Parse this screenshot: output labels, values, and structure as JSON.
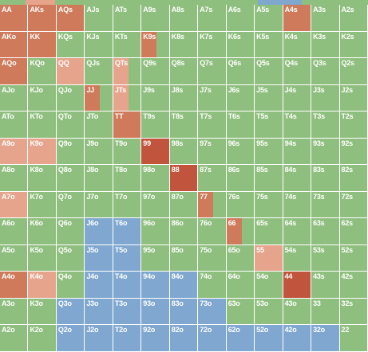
{
  "colors": {
    "call": "#8fbf7e",
    "raise": "#cf7a5a",
    "fold": "#7fa7cf",
    "allin": "#c0543c",
    "pink": "#e6a48c"
  },
  "hands": [
    [
      "AA",
      "AKs",
      "AQs",
      "AJs",
      "ATs",
      "A9s",
      "A8s",
      "A7s",
      "A6s",
      "A5s",
      "A4s",
      "A3s",
      "A2s"
    ],
    [
      "AKo",
      "KK",
      "KQs",
      "KJs",
      "KTs",
      "K9s",
      "K8s",
      "K7s",
      "K6s",
      "K5s",
      "K4s",
      "K3s",
      "K2s"
    ],
    [
      "AQo",
      "KQo",
      "QQ",
      "QJs",
      "QTs",
      "Q9s",
      "Q8s",
      "Q7s",
      "Q6s",
      "Q5s",
      "Q4s",
      "Q3s",
      "Q2s"
    ],
    [
      "AJo",
      "KJo",
      "QJo",
      "JJ",
      "JTs",
      "J9s",
      "J8s",
      "J7s",
      "J6s",
      "J5s",
      "J4s",
      "J3s",
      "J2s"
    ],
    [
      "ATo",
      "KTo",
      "QTo",
      "JTo",
      "TT",
      "T9s",
      "T8s",
      "T7s",
      "T6s",
      "T5s",
      "T4s",
      "T3s",
      "T2s"
    ],
    [
      "A9o",
      "K9o",
      "Q9o",
      "J9o",
      "T9o",
      "99",
      "98s",
      "97s",
      "96s",
      "95s",
      "94s",
      "93s",
      "92s"
    ],
    [
      "A8o",
      "K8o",
      "Q8o",
      "J8o",
      "T8o",
      "98o",
      "88",
      "87s",
      "86s",
      "85s",
      "84s",
      "83s",
      "82s"
    ],
    [
      "A7o",
      "K7o",
      "Q7o",
      "J7o",
      "T7o",
      "97o",
      "87o",
      "77",
      "76s",
      "75s",
      "74s",
      "73s",
      "72s"
    ],
    [
      "A6o",
      "K6o",
      "Q6o",
      "J6o",
      "T6o",
      "96o",
      "86o",
      "76o",
      "66",
      "65s",
      "64s",
      "63s",
      "62s"
    ],
    [
      "A5o",
      "K5o",
      "Q5o",
      "J5o",
      "T5o",
      "95o",
      "85o",
      "75o",
      "65o",
      "55",
      "54s",
      "53s",
      "52s"
    ],
    [
      "A4o",
      "K4o",
      "Q4o",
      "J4o",
      "T4o",
      "94o",
      "84o",
      "74o",
      "64o",
      "54o",
      "44",
      "43s",
      "42s"
    ],
    [
      "A3o",
      "K3o",
      "Q3o",
      "J3o",
      "T3o",
      "93o",
      "83o",
      "73o",
      "63o",
      "53o",
      "43o",
      "33",
      "32s"
    ],
    [
      "A2o",
      "K2o",
      "Q2o",
      "J2o",
      "T2o",
      "92o",
      "82o",
      "72o",
      "62o",
      "52o",
      "42o",
      "32o",
      "22"
    ]
  ],
  "cell_mix": [
    [
      [
        [
          "raise",
          100
        ]
      ],
      [
        [
          "raise",
          100
        ]
      ],
      [
        [
          "raise",
          100
        ]
      ],
      [
        [
          "call",
          100
        ]
      ],
      [
        [
          "call",
          100
        ]
      ],
      [
        [
          "call",
          100
        ]
      ],
      [
        [
          "call",
          100
        ]
      ],
      [
        [
          "call",
          100
        ]
      ],
      [
        [
          "call",
          100
        ]
      ],
      [
        [
          "call",
          100
        ]
      ],
      [
        [
          "raise",
          100
        ]
      ],
      [
        [
          "call",
          100
        ]
      ],
      [
        [
          "call",
          100
        ]
      ]
    ],
    [
      [
        [
          "raise",
          100
        ]
      ],
      [
        [
          "raise",
          100
        ]
      ],
      [
        [
          "call",
          100
        ]
      ],
      [
        [
          "call",
          100
        ]
      ],
      [
        [
          "call",
          100
        ]
      ],
      [
        [
          "raise",
          55
        ],
        [
          "call",
          45
        ]
      ],
      [
        [
          "call",
          100
        ]
      ],
      [
        [
          "call",
          100
        ]
      ],
      [
        [
          "call",
          100
        ]
      ],
      [
        [
          "call",
          100
        ]
      ],
      [
        [
          "call",
          100
        ]
      ],
      [
        [
          "call",
          100
        ]
      ],
      [
        [
          "call",
          100
        ]
      ]
    ],
    [
      [
        [
          "raise",
          100
        ]
      ],
      [
        [
          "call",
          100
        ]
      ],
      [
        [
          "pink",
          100
        ]
      ],
      [
        [
          "call",
          100
        ]
      ],
      [
        [
          "pink",
          55
        ],
        [
          "call",
          45
        ]
      ],
      [
        [
          "call",
          100
        ]
      ],
      [
        [
          "call",
          100
        ]
      ],
      [
        [
          "call",
          100
        ]
      ],
      [
        [
          "call",
          100
        ]
      ],
      [
        [
          "call",
          100
        ]
      ],
      [
        [
          "call",
          100
        ]
      ],
      [
        [
          "call",
          100
        ]
      ],
      [
        [
          "call",
          100
        ]
      ]
    ],
    [
      [
        [
          "call",
          100
        ]
      ],
      [
        [
          "call",
          100
        ]
      ],
      [
        [
          "call",
          100
        ]
      ],
      [
        [
          "raise",
          55
        ],
        [
          "call",
          45
        ]
      ],
      [
        [
          "pink",
          55
        ],
        [
          "call",
          45
        ]
      ],
      [
        [
          "call",
          100
        ]
      ],
      [
        [
          "call",
          100
        ]
      ],
      [
        [
          "call",
          100
        ]
      ],
      [
        [
          "call",
          100
        ]
      ],
      [
        [
          "call",
          100
        ]
      ],
      [
        [
          "call",
          100
        ]
      ],
      [
        [
          "call",
          100
        ]
      ],
      [
        [
          "call",
          100
        ]
      ]
    ],
    [
      [
        [
          "call",
          100
        ]
      ],
      [
        [
          "call",
          100
        ]
      ],
      [
        [
          "call",
          100
        ]
      ],
      [
        [
          "call",
          100
        ]
      ],
      [
        [
          "raise",
          100
        ]
      ],
      [
        [
          "call",
          100
        ]
      ],
      [
        [
          "call",
          100
        ]
      ],
      [
        [
          "call",
          100
        ]
      ],
      [
        [
          "call",
          100
        ]
      ],
      [
        [
          "call",
          100
        ]
      ],
      [
        [
          "call",
          100
        ]
      ],
      [
        [
          "call",
          100
        ]
      ],
      [
        [
          "call",
          100
        ]
      ]
    ],
    [
      [
        [
          "pink",
          100
        ]
      ],
      [
        [
          "pink",
          100
        ]
      ],
      [
        [
          "call",
          100
        ]
      ],
      [
        [
          "call",
          100
        ]
      ],
      [
        [
          "call",
          100
        ]
      ],
      [
        [
          "allin",
          100
        ]
      ],
      [
        [
          "call",
          100
        ]
      ],
      [
        [
          "call",
          100
        ]
      ],
      [
        [
          "call",
          100
        ]
      ],
      [
        [
          "call",
          100
        ]
      ],
      [
        [
          "call",
          100
        ]
      ],
      [
        [
          "call",
          100
        ]
      ],
      [
        [
          "call",
          100
        ]
      ]
    ],
    [
      [
        [
          "call",
          100
        ]
      ],
      [
        [
          "call",
          100
        ]
      ],
      [
        [
          "call",
          100
        ]
      ],
      [
        [
          "call",
          100
        ]
      ],
      [
        [
          "call",
          100
        ]
      ],
      [
        [
          "call",
          100
        ]
      ],
      [
        [
          "allin",
          100
        ]
      ],
      [
        [
          "call",
          100
        ]
      ],
      [
        [
          "call",
          100
        ]
      ],
      [
        [
          "call",
          100
        ]
      ],
      [
        [
          "call",
          100
        ]
      ],
      [
        [
          "call",
          100
        ]
      ],
      [
        [
          "call",
          100
        ]
      ]
    ],
    [
      [
        [
          "pink",
          100
        ]
      ],
      [
        [
          "call",
          100
        ]
      ],
      [
        [
          "call",
          100
        ]
      ],
      [
        [
          "call",
          100
        ]
      ],
      [
        [
          "call",
          100
        ]
      ],
      [
        [
          "call",
          100
        ]
      ],
      [
        [
          "call",
          100
        ]
      ],
      [
        [
          "raise",
          55
        ],
        [
          "call",
          45
        ]
      ],
      [
        [
          "call",
          100
        ]
      ],
      [
        [
          "call",
          100
        ]
      ],
      [
        [
          "call",
          100
        ]
      ],
      [
        [
          "call",
          100
        ]
      ],
      [
        [
          "call",
          100
        ]
      ]
    ],
    [
      [
        [
          "call",
          100
        ]
      ],
      [
        [
          "call",
          100
        ]
      ],
      [
        [
          "call",
          100
        ]
      ],
      [
        [
          "fold",
          100
        ]
      ],
      [
        [
          "fold",
          100
        ]
      ],
      [
        [
          "call",
          100
        ]
      ],
      [
        [
          "call",
          100
        ]
      ],
      [
        [
          "call",
          100
        ]
      ],
      [
        [
          "raise",
          55
        ],
        [
          "call",
          45
        ]
      ],
      [
        [
          "call",
          100
        ]
      ],
      [
        [
          "call",
          100
        ]
      ],
      [
        [
          "call",
          100
        ]
      ],
      [
        [
          "call",
          100
        ]
      ]
    ],
    [
      [
        [
          "call",
          100
        ]
      ],
      [
        [
          "call",
          100
        ]
      ],
      [
        [
          "call",
          100
        ]
      ],
      [
        [
          "fold",
          100
        ]
      ],
      [
        [
          "fold",
          100
        ]
      ],
      [
        [
          "call",
          100
        ]
      ],
      [
        [
          "call",
          100
        ]
      ],
      [
        [
          "call",
          100
        ]
      ],
      [
        [
          "call",
          100
        ]
      ],
      [
        [
          "pink",
          100
        ]
      ],
      [
        [
          "call",
          100
        ]
      ],
      [
        [
          "call",
          100
        ]
      ],
      [
        [
          "call",
          100
        ]
      ]
    ],
    [
      [
        [
          "raise",
          100
        ]
      ],
      [
        [
          "pink",
          100
        ]
      ],
      [
        [
          "call",
          100
        ]
      ],
      [
        [
          "fold",
          100
        ]
      ],
      [
        [
          "fold",
          100
        ]
      ],
      [
        [
          "fold",
          100
        ]
      ],
      [
        [
          "fold",
          100
        ]
      ],
      [
        [
          "call",
          100
        ]
      ],
      [
        [
          "call",
          100
        ]
      ],
      [
        [
          "call",
          100
        ]
      ],
      [
        [
          "allin",
          100
        ]
      ],
      [
        [
          "call",
          100
        ]
      ],
      [
        [
          "call",
          100
        ]
      ]
    ],
    [
      [
        [
          "call",
          100
        ]
      ],
      [
        [
          "call",
          100
        ]
      ],
      [
        [
          "fold",
          100
        ]
      ],
      [
        [
          "fold",
          100
        ]
      ],
      [
        [
          "fold",
          100
        ]
      ],
      [
        [
          "fold",
          100
        ]
      ],
      [
        [
          "fold",
          100
        ]
      ],
      [
        [
          "fold",
          100
        ]
      ],
      [
        [
          "call",
          100
        ]
      ],
      [
        [
          "call",
          100
        ]
      ],
      [
        [
          "call",
          100
        ]
      ],
      [
        [
          "call",
          100
        ]
      ],
      [
        [
          "call",
          100
        ]
      ]
    ],
    [
      [
        [
          "call",
          100
        ]
      ],
      [
        [
          "call",
          100
        ]
      ],
      [
        [
          "fold",
          100
        ]
      ],
      [
        [
          "fold",
          100
        ]
      ],
      [
        [
          "fold",
          100
        ]
      ],
      [
        [
          "fold",
          100
        ]
      ],
      [
        [
          "fold",
          100
        ]
      ],
      [
        [
          "fold",
          100
        ]
      ],
      [
        [
          "fold",
          100
        ]
      ],
      [
        [
          "fold",
          100
        ]
      ],
      [
        [
          "fold",
          100
        ]
      ],
      [
        [
          "fold",
          100
        ]
      ],
      [
        [
          "call",
          100
        ]
      ]
    ]
  ],
  "top_strip": [
    [
      "call",
      7
    ],
    [
      "pink",
      8
    ],
    [
      "call",
      55
    ],
    [
      "fold",
      12
    ],
    [
      "call",
      18
    ]
  ]
}
